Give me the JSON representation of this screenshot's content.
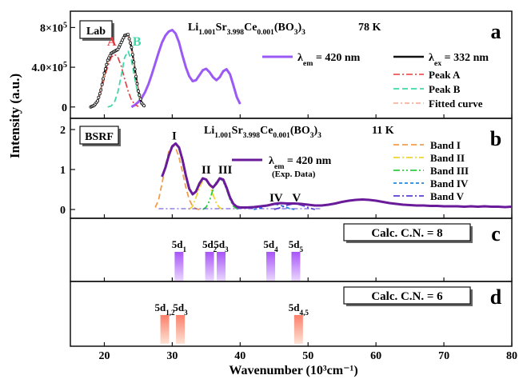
{
  "figure": {
    "xlabel": "Wavenumber (10³cm⁻¹)",
    "ylabel": "Intensity (a.u.)",
    "xlim": [
      15,
      80
    ],
    "xticks": [
      20,
      30,
      40,
      50,
      60,
      70,
      80
    ]
  },
  "chart_data": [
    {
      "panel": "a",
      "type": "line",
      "tag": "Lab",
      "formula": "Li1.001Sr3.998Ce0.001(BO3)3",
      "temperature": "78 K",
      "ylim": [
        -50000,
        900000
      ],
      "yticks": [
        {
          "value": 800000,
          "label": "8×10⁵"
        },
        {
          "value": 400000,
          "label": "4.0×10⁵"
        },
        {
          "value": 0,
          "label": "0"
        }
      ],
      "peak_labels": [
        {
          "text": "A",
          "x": 21.1,
          "y": 620000,
          "color": "#e8383a"
        },
        {
          "text": "B",
          "x": 24.8,
          "y": 620000,
          "color": "#3fd9a8"
        }
      ],
      "series": [
        {
          "name": "λem = 420 nm",
          "kind": "excitation",
          "color": "#9b59f5",
          "x": [
            24.0,
            24.5,
            25.0,
            25.5,
            26.0,
            26.5,
            27.0,
            27.5,
            28.0,
            28.5,
            29.0,
            29.5,
            30.0,
            30.5,
            31.0,
            31.5,
            32.0,
            32.5,
            33.0,
            33.5,
            34.0,
            34.5,
            35.0,
            35.5,
            36.0,
            36.5,
            37.0,
            37.5,
            38.0,
            38.5,
            39.0,
            39.5,
            40.0
          ],
          "y": [
            0,
            20000,
            50000,
            90000,
            150000,
            230000,
            330000,
            440000,
            550000,
            650000,
            720000,
            760000,
            775000,
            740000,
            650000,
            520000,
            400000,
            310000,
            260000,
            270000,
            320000,
            370000,
            385000,
            350000,
            300000,
            270000,
            300000,
            360000,
            380000,
            330000,
            220000,
            100000,
            30000
          ]
        },
        {
          "name": "λex = 332 nm",
          "kind": "emission",
          "color": "#111111",
          "x": [
            18.0,
            18.5,
            19.0,
            19.5,
            20.0,
            20.5,
            21.0,
            21.5,
            22.0,
            22.5,
            23.0,
            23.5,
            24.0,
            24.5,
            25.0,
            25.5,
            26.0
          ],
          "y": [
            0,
            15000,
            60000,
            170000,
            340000,
            470000,
            540000,
            560000,
            580000,
            650000,
            720000,
            730000,
            600000,
            380000,
            160000,
            40000,
            0
          ]
        },
        {
          "name": "Peak A",
          "color": "#e8383a",
          "x": [
            18.0,
            18.5,
            19.0,
            19.5,
            20.0,
            20.5,
            21.0,
            21.5,
            22.0,
            22.5,
            23.0,
            23.5,
            24.0,
            24.5,
            25.0
          ],
          "y": [
            0,
            15000,
            55000,
            150000,
            290000,
            410000,
            500000,
            530000,
            500000,
            410000,
            280000,
            160000,
            70000,
            25000,
            5000
          ]
        },
        {
          "name": "Peak B",
          "color": "#3fd9a8",
          "x": [
            20.5,
            21.0,
            21.5,
            22.0,
            22.5,
            23.0,
            23.5,
            24.0,
            24.5,
            25.0,
            25.5,
            26.0
          ],
          "y": [
            0,
            10000,
            50000,
            150000,
            320000,
            500000,
            560000,
            470000,
            280000,
            120000,
            35000,
            0
          ]
        },
        {
          "name": "Fitted curve",
          "color": "#f4a98c",
          "x": [
            18.0,
            18.5,
            19.0,
            19.5,
            20.0,
            20.5,
            21.0,
            21.5,
            22.0,
            22.5,
            23.0,
            23.5,
            24.0,
            24.5,
            25.0,
            25.5,
            26.0
          ],
          "y": [
            0,
            15000,
            60000,
            160000,
            320000,
            460000,
            530000,
            560000,
            600000,
            660000,
            720000,
            720000,
            580000,
            360000,
            150000,
            40000,
            0
          ]
        }
      ]
    },
    {
      "panel": "b",
      "type": "line",
      "tag": "BSRF",
      "formula": "Li1.001Sr3.998Ce0.001(BO3)3",
      "temperature": "11 K",
      "ylim": [
        -0.1,
        2.2
      ],
      "yticks": [
        {
          "value": 2,
          "label": "2"
        },
        {
          "value": 1,
          "label": "1"
        },
        {
          "value": 0,
          "label": "0"
        }
      ],
      "band_labels": [
        {
          "text": "I",
          "x": 30.3,
          "y": 1.75
        },
        {
          "text": "II",
          "x": 35.0,
          "y": 0.9
        },
        {
          "text": "III",
          "x": 37.8,
          "y": 0.9
        },
        {
          "text": "IV",
          "x": 45.3,
          "y": 0.2
        },
        {
          "text": "V",
          "x": 48.3,
          "y": 0.2
        }
      ],
      "series": [
        {
          "name": "λem = 420 nm",
          "note": "(Exp. Data)",
          "color": "#6a1b9a",
          "x": [
            28.5,
            29.0,
            29.5,
            30.0,
            30.5,
            31.0,
            31.5,
            32.0,
            32.5,
            33.0,
            33.5,
            34.0,
            34.5,
            35.0,
            35.5,
            36.0,
            36.5,
            37.0,
            37.5,
            38.0,
            38.5,
            39.0,
            39.5,
            40.0,
            41.0,
            42.0,
            43.0,
            44.0,
            45.0,
            46.0,
            47.0,
            48.0,
            49.0,
            50.0,
            51.0,
            52.0,
            53.0,
            54.0,
            55.0,
            56.0,
            57.0,
            58.0,
            59.0,
            60.0,
            61.0,
            62.0,
            63.0,
            64.0,
            65.0,
            66.0,
            67.0,
            68.0,
            69.0,
            70.0,
            71.0,
            72.0,
            73.0,
            74.0,
            75.0,
            76.0,
            77.0,
            78.0,
            79.0,
            80.0
          ],
          "y": [
            0.82,
            1.05,
            1.35,
            1.58,
            1.65,
            1.55,
            1.25,
            0.85,
            0.52,
            0.38,
            0.45,
            0.65,
            0.78,
            0.75,
            0.62,
            0.55,
            0.65,
            0.78,
            0.75,
            0.55,
            0.3,
            0.14,
            0.07,
            0.05,
            0.05,
            0.06,
            0.08,
            0.1,
            0.14,
            0.16,
            0.15,
            0.15,
            0.14,
            0.12,
            0.1,
            0.1,
            0.12,
            0.15,
            0.19,
            0.22,
            0.24,
            0.25,
            0.24,
            0.22,
            0.19,
            0.16,
            0.14,
            0.12,
            0.11,
            0.1,
            0.1,
            0.09,
            0.09,
            0.08,
            0.08,
            0.08,
            0.07,
            0.08,
            0.07,
            0.08,
            0.07,
            0.07,
            0.06,
            0.07
          ]
        },
        {
          "name": "Band I",
          "color": "#f39c4a",
          "x": [
            27.5,
            28.0,
            28.5,
            29.0,
            29.5,
            30.0,
            30.5,
            31.0,
            31.5,
            32.0,
            32.5,
            33.0,
            33.5,
            34.0
          ],
          "y": [
            0.05,
            0.25,
            0.65,
            1.1,
            1.45,
            1.6,
            1.55,
            1.3,
            0.95,
            0.55,
            0.25,
            0.08,
            0.02,
            0.0
          ]
        },
        {
          "name": "Band II",
          "color": "#f1d632",
          "x": [
            32.5,
            33.0,
            33.5,
            34.0,
            34.5,
            35.0,
            35.5,
            36.0,
            36.5,
            37.0,
            37.5
          ],
          "y": [
            0.0,
            0.08,
            0.3,
            0.55,
            0.72,
            0.75,
            0.62,
            0.38,
            0.15,
            0.04,
            0.0
          ]
        },
        {
          "name": "Band III",
          "color": "#2ecc40",
          "x": [
            34.5,
            35.0,
            35.5,
            36.0,
            36.5,
            37.0,
            37.5,
            38.0,
            38.5,
            39.0,
            39.5,
            40.0
          ],
          "y": [
            0.0,
            0.06,
            0.22,
            0.5,
            0.7,
            0.78,
            0.7,
            0.5,
            0.25,
            0.08,
            0.02,
            0.0
          ]
        },
        {
          "name": "Band IV",
          "color": "#1e88e5",
          "x": [
            42.0,
            43.0,
            44.0,
            45.0,
            46.0,
            47.0,
            48.0
          ],
          "y": [
            0.0,
            0.04,
            0.1,
            0.14,
            0.1,
            0.04,
            0.0
          ]
        },
        {
          "name": "Band V",
          "color": "#5b3fd6",
          "x": [
            45.0,
            46.0,
            47.0,
            48.0,
            49.0,
            50.0,
            51.0
          ],
          "y": [
            0.0,
            0.05,
            0.11,
            0.15,
            0.11,
            0.05,
            0.0
          ]
        }
      ]
    },
    {
      "panel": "c",
      "type": "bar",
      "label": "Calc. C.N. = 8",
      "bar_top": "#a855f7",
      "bar_bottom": "#e9d5ff",
      "bars": [
        {
          "label": "5d",
          "sub": "1",
          "x": 31.0
        },
        {
          "label": "5d",
          "sub": "2",
          "x": 35.5
        },
        {
          "label": "5d",
          "sub": "3",
          "x": 37.2
        },
        {
          "label": "5d",
          "sub": "4",
          "x": 44.5
        },
        {
          "label": "5d",
          "sub": "5",
          "x": 48.2
        }
      ]
    },
    {
      "panel": "d",
      "type": "bar",
      "label": "Calc. C.N. = 6",
      "bar_top": "#fb7f6a",
      "bar_bottom": "#fde3d6",
      "bars": [
        {
          "label": "5d",
          "sub": "1,2",
          "x": 28.9
        },
        {
          "label": "5d",
          "sub": "3",
          "x": 31.2
        },
        {
          "label": "5d",
          "sub": "4,5",
          "x": 48.6
        }
      ]
    }
  ]
}
